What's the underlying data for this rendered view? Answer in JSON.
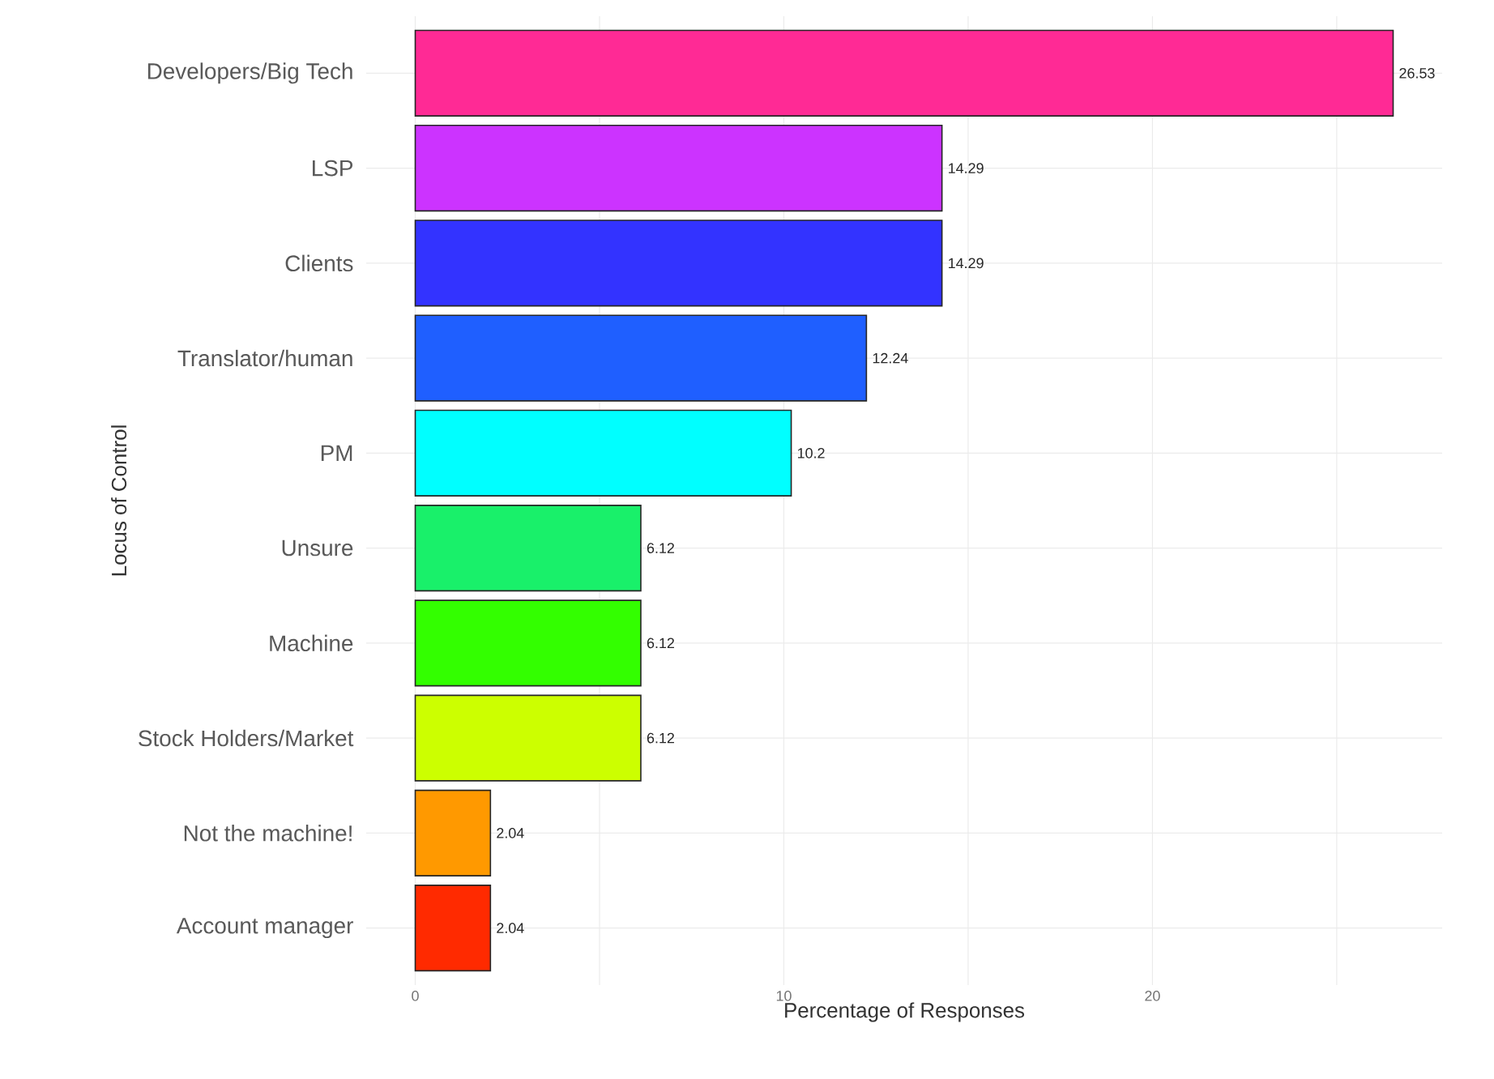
{
  "chart_data": {
    "type": "bar",
    "orientation": "horizontal",
    "xlabel": "Percentage of Responses",
    "ylabel": "Locus of Control",
    "categories": [
      "Developers/Big Tech",
      "LSP",
      "Clients",
      "Translator/human",
      "PM",
      "Unsure",
      "Machine",
      "Stock Holders/Market",
      "Not the machine!",
      "Account manager"
    ],
    "values": [
      26.53,
      14.29,
      14.29,
      12.24,
      10.2,
      6.12,
      6.12,
      6.12,
      2.04,
      2.04
    ],
    "value_labels": [
      "26.53",
      "14.29",
      "14.29",
      "12.24",
      "10.2",
      "6.12",
      "6.12",
      "6.12",
      "2.04",
      "2.04"
    ],
    "colors": [
      "#ff2a95",
      "#cc33ff",
      "#3333ff",
      "#1f5fff",
      "#00ffff",
      "#19f06a",
      "#33ff00",
      "#ccff00",
      "#ff9900",
      "#ff2a00"
    ],
    "xlim": [
      -1.33,
      27.86
    ],
    "xticks": [
      0,
      {
        "value": 5,
        "label": null
      },
      10,
      {
        "value": 15,
        "label": null
      },
      20,
      {
        "value": 25,
        "label": null
      }
    ],
    "grid": true
  }
}
